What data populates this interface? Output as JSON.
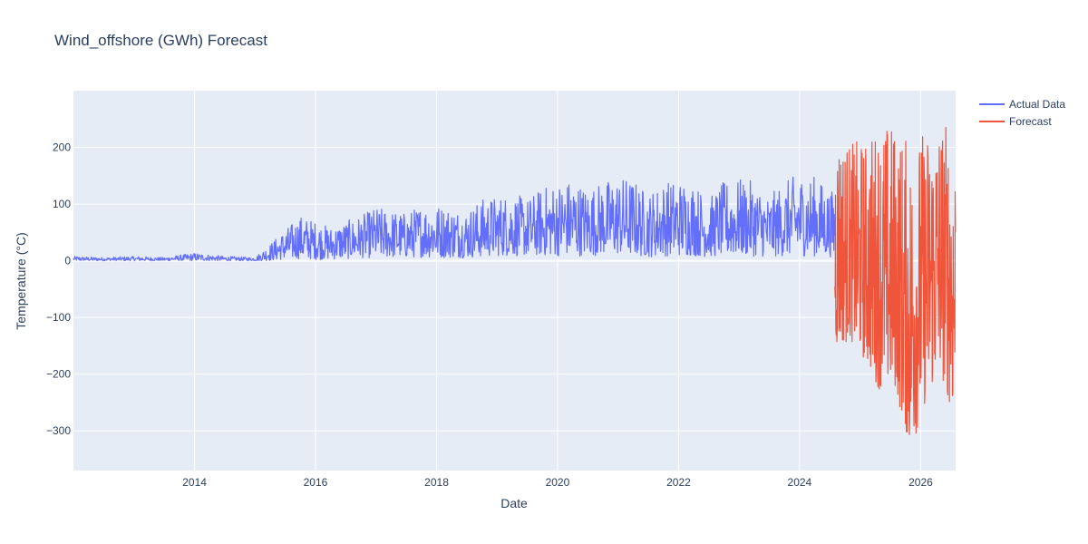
{
  "chart_data": {
    "type": "line",
    "title": "Wind_offshore (GWh) Forecast",
    "xlabel": "Date",
    "ylabel": "Temperature (°C)",
    "xlim": [
      "2012-01-01",
      "2026-07-31"
    ],
    "ylim": [
      -370,
      300
    ],
    "x_ticks": [
      "2014",
      "2016",
      "2018",
      "2020",
      "2022",
      "2024",
      "2026"
    ],
    "y_ticks": [
      200,
      100,
      0,
      -100,
      -200,
      -300
    ],
    "y_tick_labels": [
      "200",
      "100",
      "0",
      "−100",
      "−200",
      "−300"
    ],
    "grid": true,
    "legend_position": "top-right",
    "background": "#e5ecf6",
    "series": [
      {
        "name": "Actual Data",
        "color": "#636efa",
        "x": [
          "2012-01-01",
          "2012-07-01",
          "2013-01-01",
          "2013-07-01",
          "2014-01-01",
          "2014-07-01",
          "2015-01-01",
          "2015-04-01",
          "2015-07-01",
          "2015-10-01",
          "2016-01-01",
          "2016-04-01",
          "2016-07-01",
          "2016-10-01",
          "2017-01-01",
          "2017-04-01",
          "2017-07-01",
          "2017-10-01",
          "2018-01-01",
          "2018-04-01",
          "2018-07-01",
          "2018-10-01",
          "2019-01-01",
          "2019-04-01",
          "2019-07-01",
          "2019-10-01",
          "2020-01-01",
          "2020-04-01",
          "2020-07-01",
          "2020-10-01",
          "2021-01-01",
          "2021-04-01",
          "2021-07-01",
          "2021-10-01",
          "2022-01-01",
          "2022-04-01",
          "2022-07-01",
          "2022-10-01",
          "2023-01-01",
          "2023-04-01",
          "2023-07-01",
          "2023-10-01",
          "2024-01-01",
          "2024-04-01",
          "2024-08-01"
        ],
        "low": [
          0,
          0,
          0,
          0,
          0,
          0,
          0,
          0,
          2,
          3,
          2,
          2,
          3,
          5,
          5,
          5,
          5,
          6,
          5,
          5,
          5,
          6,
          8,
          8,
          8,
          8,
          8,
          8,
          8,
          10,
          10,
          8,
          6,
          8,
          8,
          8,
          6,
          8,
          8,
          8,
          6,
          8,
          8,
          8,
          6
        ],
        "high": [
          8,
          6,
          8,
          6,
          14,
          8,
          6,
          30,
          55,
          80,
          70,
          60,
          70,
          80,
          95,
          90,
          85,
          100,
          100,
          95,
          90,
          110,
          115,
          120,
          110,
          130,
          140,
          145,
          130,
          140,
          150,
          145,
          120,
          140,
          145,
          140,
          110,
          140,
          145,
          140,
          115,
          140,
          155,
          150,
          120
        ]
      },
      {
        "name": "Forecast",
        "color": "#ef553b",
        "x": [
          "2024-08-01",
          "2024-11-01",
          "2025-02-01",
          "2025-05-01",
          "2025-08-01",
          "2025-11-01",
          "2026-02-01",
          "2026-05-01",
          "2026-07-31"
        ],
        "low": [
          -160,
          -140,
          -180,
          -230,
          -230,
          -340,
          -250,
          -200,
          -290
        ],
        "high": [
          250,
          210,
          215,
          250,
          245,
          210,
          240,
          265,
          230
        ]
      }
    ]
  }
}
